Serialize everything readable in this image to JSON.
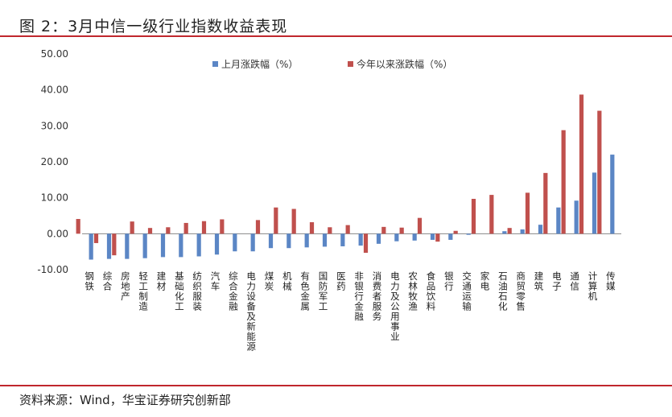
{
  "header": {
    "title": "图 2：3月中信一级行业指数收益表现"
  },
  "footer": {
    "source": "资料来源：Wind，华宝证券研究创新部"
  },
  "colors": {
    "rule": "#c0272d",
    "series_month": "#5b86c5",
    "series_ytd": "#c0504d",
    "axis": "#888888"
  },
  "chart_data": {
    "type": "bar",
    "ylim": [
      -10,
      50
    ],
    "yticks": [
      "50.00",
      "40.00",
      "30.00",
      "20.00",
      "10.00",
      "0.00",
      "-10.00"
    ],
    "ytick_values": [
      50,
      40,
      30,
      20,
      10,
      0,
      -10
    ],
    "legend_position": "top-center",
    "categories": [
      "钢铁",
      "综合",
      "房地产",
      "轻工制造",
      "建材",
      "基础化工",
      "纺织服装",
      "汽车",
      "综合金融",
      "电力设备及新能源",
      "煤炭",
      "机械",
      "有色金属",
      "国防军工",
      "医药",
      "非银行金融",
      "消费者服务",
      "电力及公用事业",
      "农林牧渔",
      "食品饮料",
      "银行",
      "交通运输",
      "家电",
      "石油石化",
      "商贸零售",
      "建筑",
      "电子",
      "通信",
      "计算机",
      "传媒"
    ],
    "series": [
      {
        "name": "上月涨跌幅（%）",
        "color": "#5b86c5",
        "values": [
          -7.2,
          -7.0,
          -7.0,
          -6.8,
          -6.5,
          -6.5,
          -6.3,
          -5.8,
          -4.9,
          -4.9,
          -4.0,
          -4.0,
          -3.8,
          -3.6,
          -3.5,
          -3.3,
          -2.8,
          -2.1,
          -1.9,
          -1.7,
          -1.7,
          -0.3,
          0.0,
          0.7,
          1.2,
          2.5,
          7.3,
          9.2,
          17.0,
          22.0
        ]
      },
      {
        "name": "今年以来涨跌幅（%）",
        "color": "#c0504d",
        "values": [
          4.1,
          -2.6,
          -6.0,
          3.4,
          1.6,
          1.8,
          3.0,
          3.5,
          4.0,
          0.0,
          3.8,
          7.3,
          6.9,
          3.2,
          1.8,
          2.4,
          -5.3,
          1.9,
          1.7,
          4.4,
          -2.2,
          0.8,
          9.7,
          10.8,
          1.6,
          11.4,
          16.9,
          28.8,
          38.7,
          34.2
        ]
      }
    ]
  }
}
